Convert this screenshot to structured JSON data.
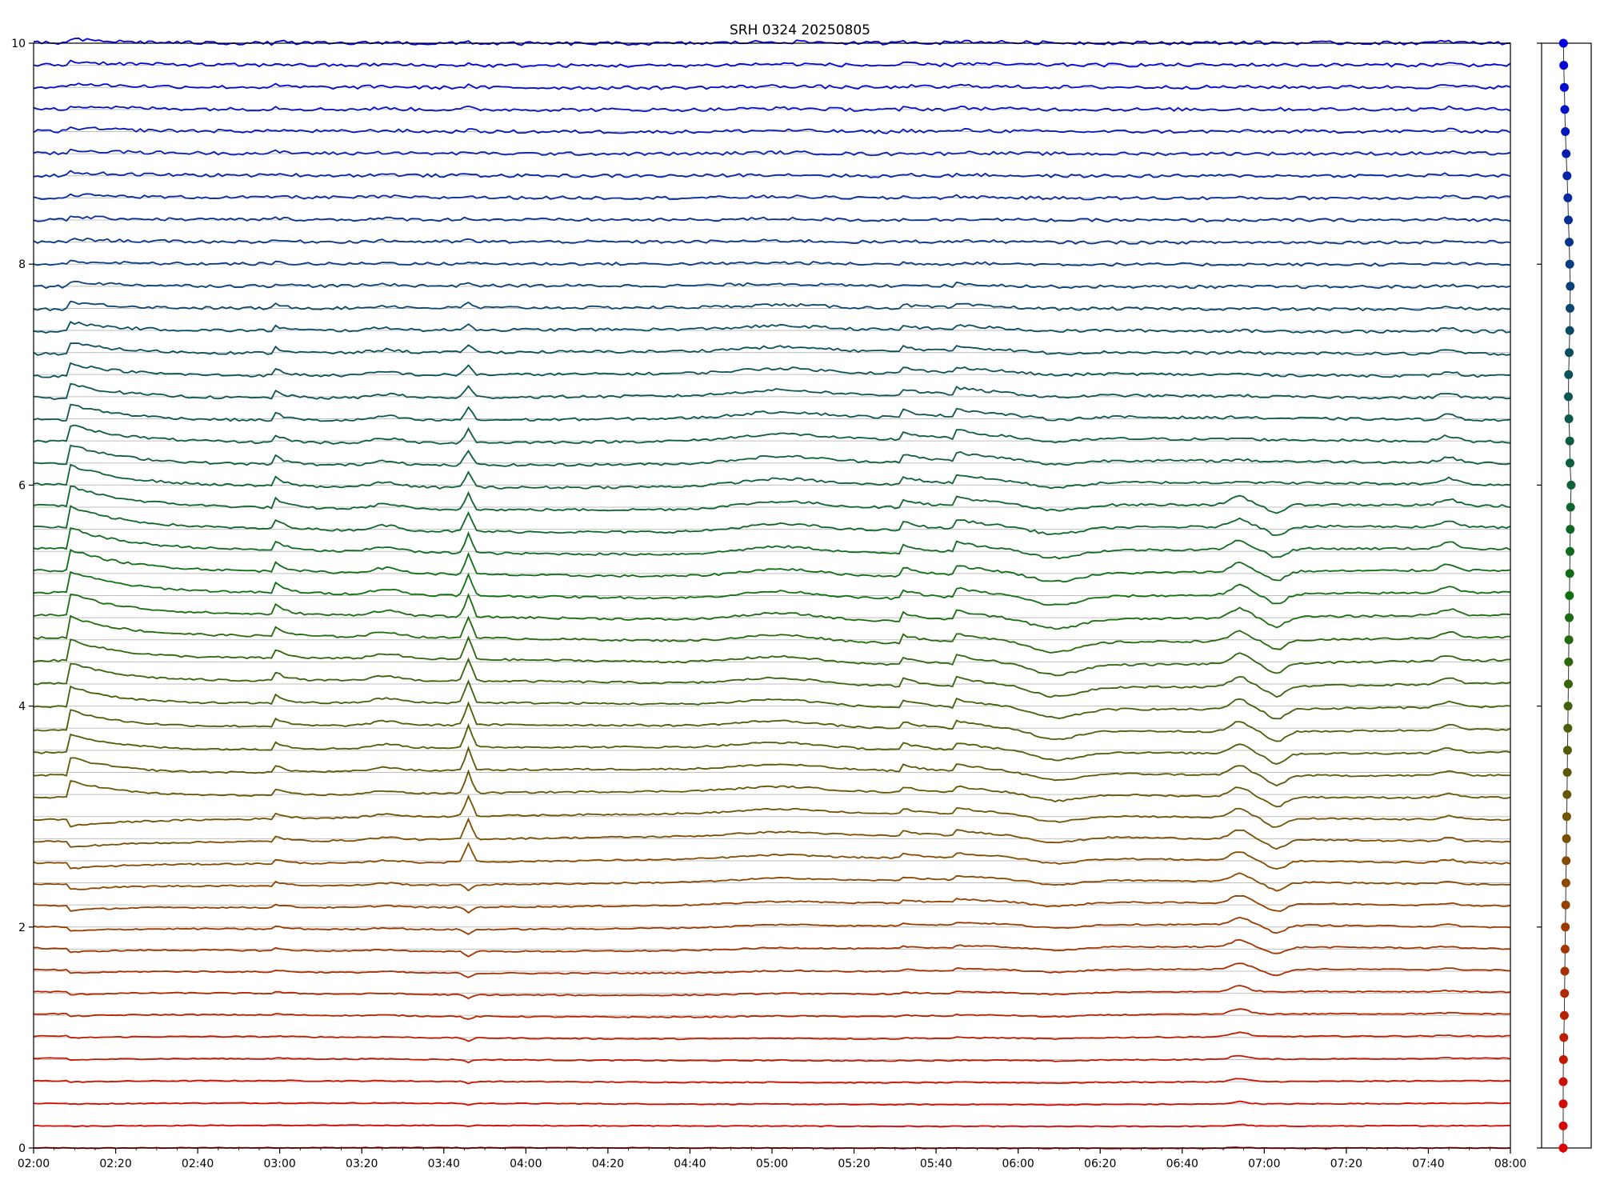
{
  "chart_data": [
    {
      "type": "line",
      "title": "SRH 0324 20250805",
      "xlabel": "",
      "ylabel": "",
      "x_range": [
        "02:00",
        "08:00"
      ],
      "x_tick_labels": [
        "02:00",
        "02:20",
        "02:40",
        "03:00",
        "03:20",
        "03:40",
        "04:00",
        "04:20",
        "04:40",
        "05:00",
        "05:20",
        "05:40",
        "06:00",
        "06:20",
        "06:40",
        "07:00",
        "07:20",
        "07:40",
        "08:00"
      ],
      "ylim": [
        0,
        10
      ],
      "y_tick_labels": [
        "0",
        "2",
        "4",
        "6",
        "8",
        "10"
      ],
      "grid": "horizontal baselines at each trace offset",
      "trace_count": 51,
      "trace_spacing": 0.2,
      "trace_baselines_from": 0,
      "color_gradient": [
        "#e00000",
        "#8a4a00",
        "#107010",
        "#0a4a6a",
        "#0000e0"
      ],
      "notable_events": [
        "02:09",
        "02:59",
        "03:26",
        "03:46",
        "05:02",
        "05:32",
        "05:45",
        "06:09",
        "06:54",
        "07:03",
        "07:45"
      ]
    },
    {
      "type": "scatter",
      "title": "",
      "point_count": 51,
      "x_wander": [
        0.0,
        0.0,
        0.0,
        0.0,
        0.02,
        0.05,
        0.08,
        0.1,
        0.12,
        0.14,
        0.16,
        0.18,
        0.2,
        0.22,
        0.24,
        0.26,
        0.28,
        0.3,
        0.32,
        0.34,
        0.36,
        0.38,
        0.4,
        0.42,
        0.44,
        0.46,
        0.48,
        0.5,
        0.52,
        0.54,
        0.58,
        0.5,
        0.48,
        0.42,
        0.38,
        0.4,
        0.44,
        0.48,
        0.5,
        0.52,
        0.48,
        0.44,
        0.38,
        0.34,
        0.28,
        0.22,
        0.16,
        0.12,
        0.08,
        0.04,
        0.02
      ]
    }
  ]
}
